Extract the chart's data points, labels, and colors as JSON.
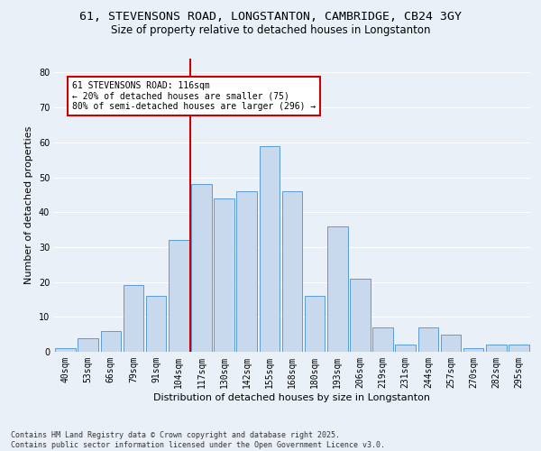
{
  "title": "61, STEVENSONS ROAD, LONGSTANTON, CAMBRIDGE, CB24 3GY",
  "subtitle": "Size of property relative to detached houses in Longstanton",
  "xlabel": "Distribution of detached houses by size in Longstanton",
  "ylabel": "Number of detached properties",
  "categories": [
    "40sqm",
    "53sqm",
    "66sqm",
    "79sqm",
    "91sqm",
    "104sqm",
    "117sqm",
    "130sqm",
    "142sqm",
    "155sqm",
    "168sqm",
    "180sqm",
    "193sqm",
    "206sqm",
    "219sqm",
    "231sqm",
    "244sqm",
    "257sqm",
    "270sqm",
    "282sqm",
    "295sqm"
  ],
  "values": [
    1,
    4,
    6,
    19,
    16,
    32,
    48,
    44,
    46,
    59,
    46,
    16,
    36,
    21,
    7,
    2,
    7,
    5,
    1,
    2,
    2
  ],
  "bar_color": "#c9d9ed",
  "bar_edge_color": "#5b9bd5",
  "background_color": "#eaf0f8",
  "grid_color": "#ffffff",
  "vline_color": "#cc0000",
  "annotation_text": "61 STEVENSONS ROAD: 116sqm\n← 20% of detached houses are smaller (75)\n80% of semi-detached houses are larger (296) →",
  "annotation_box_color": "#cc0000",
  "ylim": [
    0,
    84
  ],
  "yticks": [
    0,
    10,
    20,
    30,
    40,
    50,
    60,
    70,
    80
  ],
  "footnote": "Contains HM Land Registry data © Crown copyright and database right 2025.\nContains public sector information licensed under the Open Government Licence v3.0.",
  "title_fontsize": 9.5,
  "subtitle_fontsize": 8.5,
  "xlabel_fontsize": 8,
  "ylabel_fontsize": 8,
  "tick_fontsize": 7,
  "annotation_fontsize": 7,
  "footnote_fontsize": 6
}
